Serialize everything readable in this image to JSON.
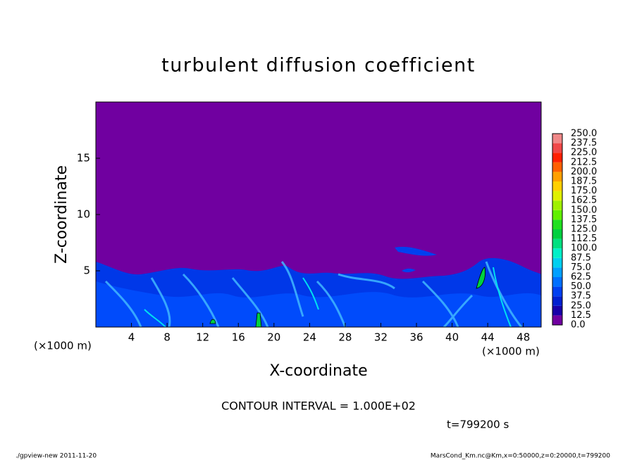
{
  "chart_data": {
    "type": "contour",
    "title": "turbulent diffusion coefficient",
    "xlabel": "X-coordinate",
    "ylabel": "Z-coordinate",
    "x_unit": "(×1000 m)",
    "xlim": [
      0,
      50
    ],
    "ylim": [
      0,
      20
    ],
    "xticks": [
      4,
      8,
      12,
      16,
      20,
      24,
      28,
      32,
      36,
      40,
      44,
      48
    ],
    "yticks": [
      5,
      10,
      15
    ],
    "background_color": "#7000a0",
    "contour_interval": "CONTOUR INTERVAL = 1.000E+02",
    "time_label": "t=799200 s",
    "footer_left": "./gpview-new  2011-11-20",
    "footer_right": "MarsCond_Km.nc@Km,x=0:50000,z=0:20000,t=799200",
    "colorbar": {
      "levels": [
        {
          "value": 0,
          "label": "0.0"
        },
        {
          "value": 12.5,
          "label": "12.5"
        },
        {
          "value": 25,
          "label": "25.0"
        },
        {
          "value": 37.5,
          "label": "37.5"
        },
        {
          "value": 50,
          "label": "50.0"
        },
        {
          "value": 62.5,
          "label": "62.5"
        },
        {
          "value": 75,
          "label": "75.0"
        },
        {
          "value": 87.5,
          "label": "87.5"
        },
        {
          "value": 100,
          "label": "100.0"
        },
        {
          "value": 112.5,
          "label": "112.5"
        },
        {
          "value": 125,
          "label": "125.0"
        },
        {
          "value": 137.5,
          "label": "137.5"
        },
        {
          "value": 150,
          "label": "150.0"
        },
        {
          "value": 162.5,
          "label": "162.5"
        },
        {
          "value": 175,
          "label": "175.0"
        },
        {
          "value": 187.5,
          "label": "187.5"
        },
        {
          "value": 200,
          "label": "200.0"
        },
        {
          "value": 212.5,
          "label": "212.5"
        },
        {
          "value": 225,
          "label": "225.0"
        },
        {
          "value": 237.5,
          "label": "237.5"
        },
        {
          "value": 250,
          "label": "250.0"
        }
      ],
      "colors": [
        "#7000a0",
        "#1800a8",
        "#0020d0",
        "#0040f0",
        "#0070ff",
        "#00a0ff",
        "#00d0f0",
        "#00f0c8",
        "#00e080",
        "#00d040",
        "#20e020",
        "#60f000",
        "#a0f000",
        "#e0f000",
        "#ffd000",
        "#ffa000",
        "#ff6000",
        "#ff2000",
        "#f04848",
        "#f08888"
      ]
    }
  }
}
